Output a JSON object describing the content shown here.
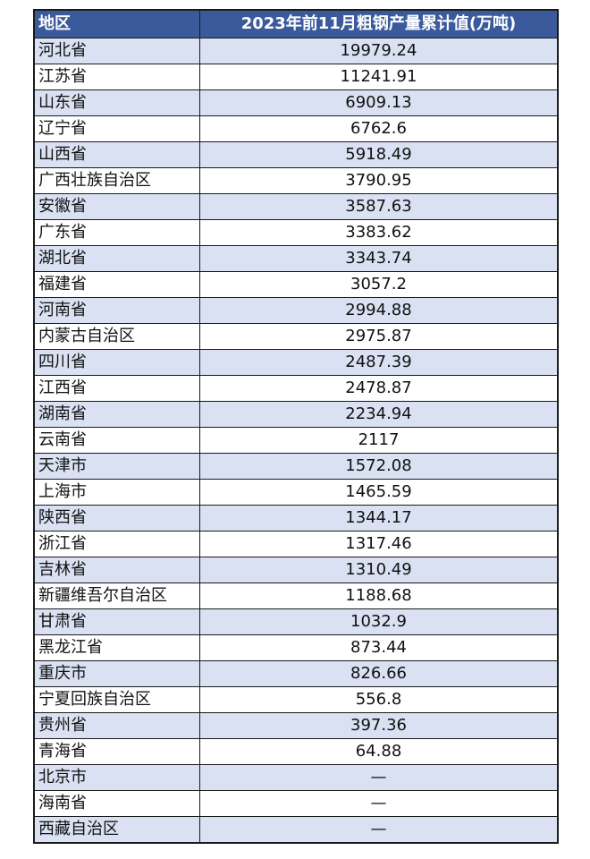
{
  "table": {
    "headers": [
      "地区",
      "2023年前11月粗钢产量累计值(万吨)"
    ],
    "rows": [
      [
        "河北省",
        "19979.24"
      ],
      [
        "江苏省",
        "11241.91"
      ],
      [
        "山东省",
        "6909.13"
      ],
      [
        "辽宁省",
        "6762.6"
      ],
      [
        "山西省",
        "5918.49"
      ],
      [
        "广西壮族自治区",
        "3790.95"
      ],
      [
        "安徽省",
        "3587.63"
      ],
      [
        "广东省",
        "3383.62"
      ],
      [
        "湖北省",
        "3343.74"
      ],
      [
        "福建省",
        "3057.2"
      ],
      [
        "河南省",
        "2994.88"
      ],
      [
        "内蒙古自治区",
        "2975.87"
      ],
      [
        "四川省",
        "2487.39"
      ],
      [
        "江西省",
        "2478.87"
      ],
      [
        "湖南省",
        "2234.94"
      ],
      [
        "云南省",
        "2117"
      ],
      [
        "天津市",
        "1572.08"
      ],
      [
        "上海市",
        "1465.59"
      ],
      [
        "陕西省",
        "1344.17"
      ],
      [
        "浙江省",
        "1317.46"
      ],
      [
        "吉林省",
        "1310.49"
      ],
      [
        "新疆维吾尔自治区",
        "1188.68"
      ],
      [
        "甘肃省",
        "1032.9"
      ],
      [
        "黑龙江省",
        "873.44"
      ],
      [
        "重庆市",
        "826.66"
      ],
      [
        "宁夏回族自治区",
        "556.8"
      ],
      [
        "贵州省",
        "397.36"
      ],
      [
        "青海省",
        "64.88"
      ],
      [
        "北京市",
        "—"
      ],
      [
        "海南省",
        "—"
      ],
      [
        "西藏自治区",
        "—"
      ]
    ]
  },
  "colors": {
    "header_bg": "#3b5a9c",
    "band": "#d9e1f2"
  }
}
